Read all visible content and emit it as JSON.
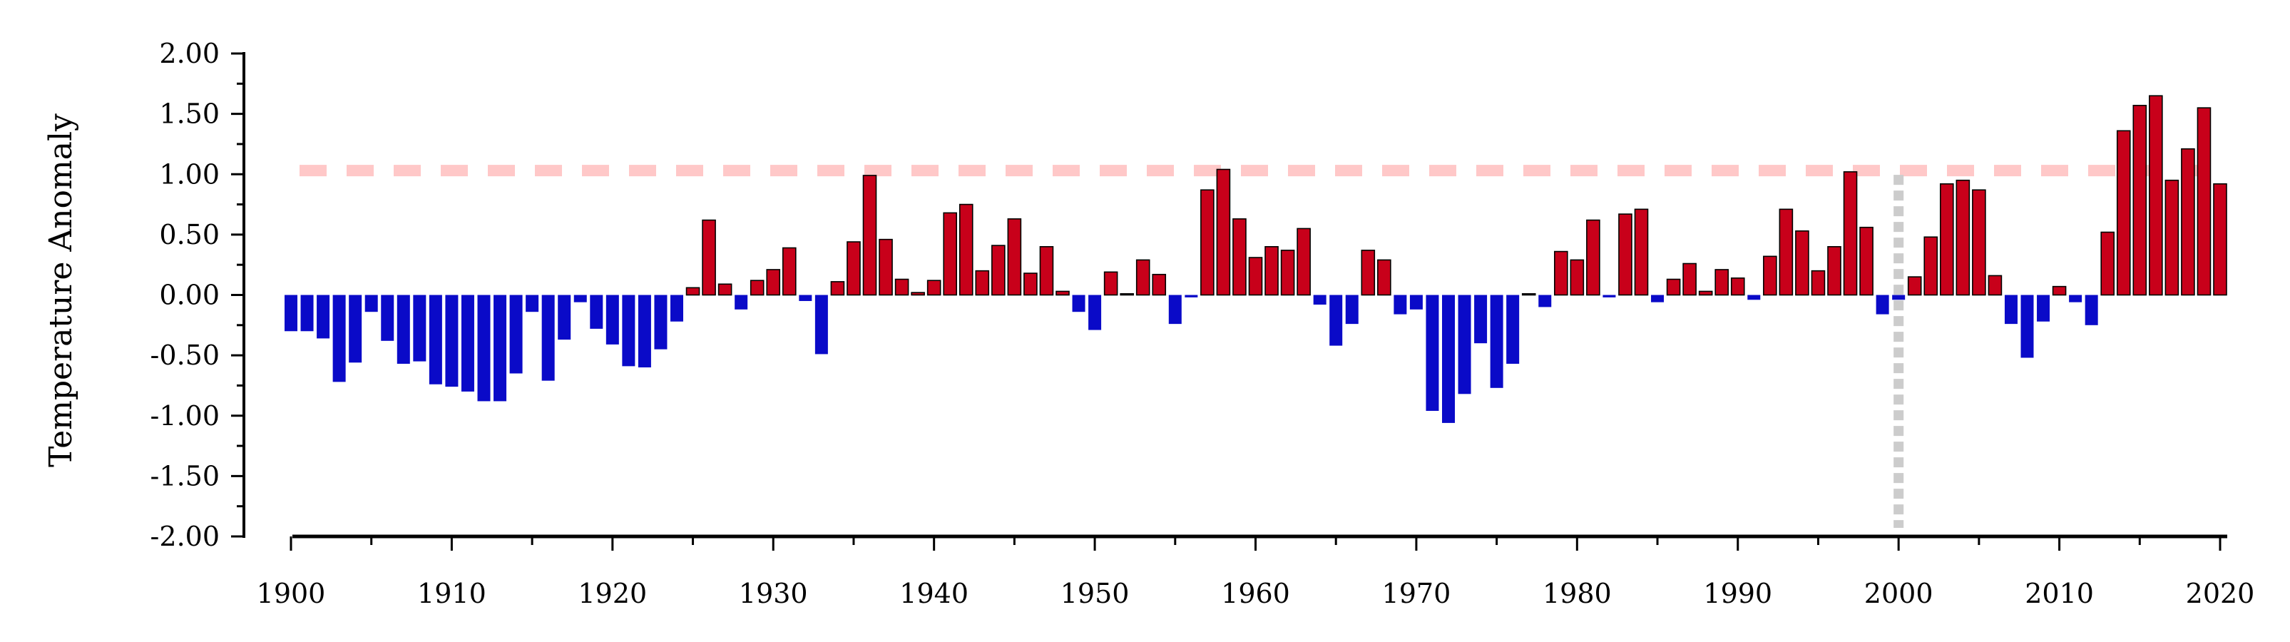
{
  "chart_data": {
    "type": "bar",
    "title": "",
    "xlabel": "",
    "ylabel": "Temperature Anomaly",
    "xlim": [
      1899.5,
      2020.5
    ],
    "ylim": [
      -2.0,
      2.0
    ],
    "x_ticks": [
      1900,
      1910,
      1920,
      1930,
      1940,
      1950,
      1960,
      1970,
      1980,
      1990,
      2000,
      2010,
      2020
    ],
    "y_ticks": [
      "2.00",
      "1.50",
      "1.00",
      "0.50",
      "0.00",
      "-0.50",
      "-1.00",
      "-1.50",
      "-2.00"
    ],
    "colors": {
      "positive": "#c8001a",
      "negative": "#0a0ac8",
      "threshold_line": "#ffc8c8",
      "marker_line": "#cccccc"
    },
    "threshold": 1.03,
    "marker_year": 2000,
    "x": [
      1900,
      1901,
      1902,
      1903,
      1904,
      1905,
      1906,
      1907,
      1908,
      1909,
      1910,
      1911,
      1912,
      1913,
      1914,
      1915,
      1916,
      1917,
      1918,
      1919,
      1920,
      1921,
      1922,
      1923,
      1924,
      1925,
      1926,
      1927,
      1928,
      1929,
      1930,
      1931,
      1932,
      1933,
      1934,
      1935,
      1936,
      1937,
      1938,
      1939,
      1940,
      1941,
      1942,
      1943,
      1944,
      1945,
      1946,
      1947,
      1948,
      1949,
      1950,
      1951,
      1952,
      1953,
      1954,
      1955,
      1956,
      1957,
      1958,
      1959,
      1960,
      1961,
      1962,
      1963,
      1964,
      1965,
      1966,
      1967,
      1968,
      1969,
      1970,
      1971,
      1972,
      1973,
      1974,
      1975,
      1976,
      1977,
      1978,
      1979,
      1980,
      1981,
      1982,
      1983,
      1984,
      1985,
      1986,
      1987,
      1988,
      1989,
      1990,
      1991,
      1992,
      1993,
      1994,
      1995,
      1996,
      1997,
      1998,
      1999,
      2000,
      2001,
      2002,
      2003,
      2004,
      2005,
      2006,
      2007,
      2008,
      2009,
      2010,
      2011,
      2012,
      2013,
      2014,
      2015,
      2016,
      2017,
      2018,
      2019,
      2020
    ],
    "values": [
      -0.3,
      -0.3,
      -0.36,
      -0.72,
      -0.56,
      -0.14,
      -0.38,
      -0.57,
      -0.55,
      -0.74,
      -0.76,
      -0.8,
      -0.88,
      -0.88,
      -0.65,
      -0.14,
      -0.71,
      -0.37,
      -0.06,
      -0.28,
      -0.41,
      -0.59,
      -0.6,
      -0.45,
      -0.22,
      0.06,
      0.62,
      0.09,
      -0.12,
      0.12,
      0.21,
      0.39,
      -0.05,
      -0.49,
      0.11,
      0.44,
      0.99,
      0.46,
      0.13,
      0.02,
      0.12,
      0.68,
      0.75,
      0.2,
      0.41,
      0.63,
      0.18,
      0.4,
      0.03,
      -0.14,
      -0.29,
      0.19,
      0.01,
      0.29,
      0.17,
      -0.24,
      -0.02,
      0.87,
      1.04,
      0.63,
      0.31,
      0.4,
      0.37,
      0.55,
      -0.08,
      -0.42,
      -0.24,
      0.37,
      0.29,
      -0.16,
      -0.12,
      -0.96,
      -1.06,
      -0.82,
      -0.4,
      -0.77,
      -0.57,
      0.01,
      -0.1,
      0.36,
      0.29,
      0.62,
      -0.02,
      0.67,
      0.71,
      -0.06,
      0.13,
      0.26,
      0.03,
      0.21,
      0.14,
      -0.04,
      0.32,
      0.71,
      0.53,
      0.2,
      0.4,
      1.02,
      0.56,
      -0.16,
      -0.04,
      0.15,
      0.48,
      0.92,
      0.95,
      0.87,
      0.16,
      -0.24,
      -0.52,
      -0.22,
      0.07,
      -0.06,
      -0.25,
      0.52,
      1.36,
      1.57,
      1.65,
      0.95,
      1.21,
      1.55,
      0.92
    ]
  }
}
